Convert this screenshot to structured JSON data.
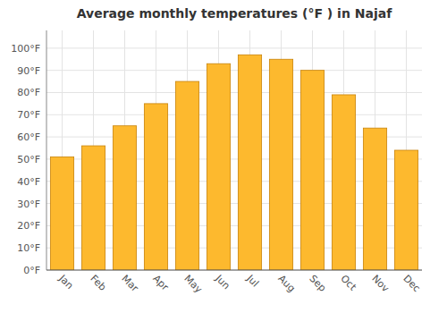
{
  "chart_data": {
    "type": "bar",
    "title": "Average monthly temperatures (°F ) in Najaf",
    "categories": [
      "Jan",
      "Feb",
      "Mar",
      "Apr",
      "May",
      "Jun",
      "Jul",
      "Aug",
      "Sep",
      "Oct",
      "Nov",
      "Dec"
    ],
    "values": [
      51,
      56,
      65,
      75,
      85,
      93,
      97,
      95,
      90,
      79,
      64,
      54
    ],
    "color": "#FDB92E",
    "ylim": [
      0,
      108
    ],
    "yticks": [
      {
        "value": 0,
        "label": "0°F"
      },
      {
        "value": 10,
        "label": "10°F"
      },
      {
        "value": 20,
        "label": "20°F"
      },
      {
        "value": 30,
        "label": "30°F"
      },
      {
        "value": 40,
        "label": "40°F"
      },
      {
        "value": 50,
        "label": "50°F"
      },
      {
        "value": 60,
        "label": "60°F"
      },
      {
        "value": 70,
        "label": "70°F"
      },
      {
        "value": 80,
        "label": "80°F"
      },
      {
        "value": 90,
        "label": "90°F"
      },
      {
        "value": 100,
        "label": "100°F"
      }
    ],
    "grid": true
  }
}
